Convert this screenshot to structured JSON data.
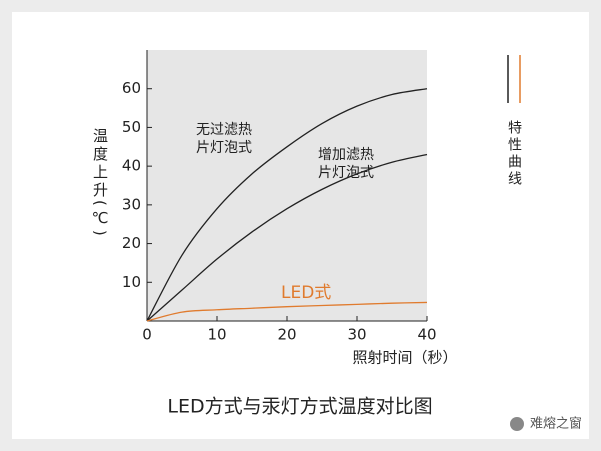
{
  "chart_data": {
    "type": "line",
    "title": "LED方式与汞灯方式温度对比图",
    "x_label": "照射时间（秒）",
    "y_label": "温度上升(℃)",
    "legend_title": "特性曲线",
    "watermark": "难熔之窗",
    "x": [
      0,
      5,
      10,
      15,
      20,
      25,
      30,
      35,
      40
    ],
    "series": [
      {
        "name": "无过滤热片灯泡式",
        "color": "#222222",
        "values": [
          0,
          17,
          29,
          38,
          45,
          51,
          55.5,
          58.5,
          60
        ]
      },
      {
        "name": "增加滤热片灯泡式",
        "color": "#222222",
        "values": [
          0,
          8,
          16,
          23,
          29,
          34,
          38,
          41,
          43
        ]
      },
      {
        "name": "LED式",
        "color": "#e07b2e",
        "values": [
          0,
          2.3,
          2.9,
          3.3,
          3.7,
          4.0,
          4.3,
          4.6,
          4.8
        ]
      }
    ],
    "xlim": [
      0,
      40
    ],
    "xticks": [
      0,
      10,
      20,
      30,
      40
    ],
    "ylim": [
      0,
      70
    ],
    "yticks": [
      10,
      20,
      30,
      40,
      50,
      60
    ],
    "legend_colors": [
      "#222222",
      "#e07b2e"
    ]
  }
}
